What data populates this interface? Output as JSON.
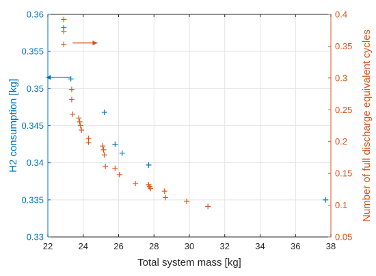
{
  "chart_data": {
    "type": "scatter",
    "title": "",
    "xlabel": "Total system mass [kg]",
    "ylabel_left": "H2 consumption [kg]",
    "ylabel_right": "Number of full discharge equivalent cycles",
    "xlim": [
      22,
      38
    ],
    "ylim_left": [
      0.33,
      0.36
    ],
    "ylim_right": [
      0.05,
      0.4
    ],
    "xticks": [
      "22",
      "24",
      "26",
      "28",
      "30",
      "32",
      "34",
      "36",
      "38"
    ],
    "yticks_left": [
      "0.33",
      "0.335",
      "0.34",
      "0.345",
      "0.35",
      "0.355",
      "0.36"
    ],
    "yticks_right": [
      "0.05",
      "0.1",
      "0.15",
      "0.2",
      "0.25",
      "0.3",
      "0.35",
      "0.4"
    ],
    "grid": true,
    "marker": "+",
    "colors": {
      "left": "#0072BD",
      "right": "#D95319",
      "grid": "#e3e3e3",
      "axis": "#262626"
    },
    "series": [
      {
        "axis": "left",
        "points": [
          {
            "x": 22.9,
            "y": 0.3582
          },
          {
            "x": 23.3,
            "y": 0.3513
          },
          {
            "x": 25.2,
            "y": 0.3468
          },
          {
            "x": 25.8,
            "y": 0.3425
          },
          {
            "x": 26.2,
            "y": 0.3413
          },
          {
            "x": 27.7,
            "y": 0.3397
          },
          {
            "x": 37.7,
            "y": 0.335
          }
        ]
      },
      {
        "axis": "right",
        "points": [
          {
            "x": 22.9,
            "y": 0.392
          },
          {
            "x": 22.9,
            "y": 0.373
          },
          {
            "x": 22.9,
            "y": 0.353
          },
          {
            "x": 23.35,
            "y": 0.282
          },
          {
            "x": 23.35,
            "y": 0.266
          },
          {
            "x": 23.4,
            "y": 0.243
          },
          {
            "x": 23.75,
            "y": 0.237
          },
          {
            "x": 23.8,
            "y": 0.231
          },
          {
            "x": 23.85,
            "y": 0.225
          },
          {
            "x": 23.9,
            "y": 0.218
          },
          {
            "x": 24.3,
            "y": 0.205
          },
          {
            "x": 24.3,
            "y": 0.199
          },
          {
            "x": 25.1,
            "y": 0.193
          },
          {
            "x": 25.15,
            "y": 0.187
          },
          {
            "x": 25.2,
            "y": 0.179
          },
          {
            "x": 25.25,
            "y": 0.161
          },
          {
            "x": 25.8,
            "y": 0.158
          },
          {
            "x": 26.05,
            "y": 0.148
          },
          {
            "x": 26.95,
            "y": 0.134
          },
          {
            "x": 27.7,
            "y": 0.132
          },
          {
            "x": 27.75,
            "y": 0.129
          },
          {
            "x": 27.8,
            "y": 0.126
          },
          {
            "x": 28.6,
            "y": 0.122
          },
          {
            "x": 28.65,
            "y": 0.112
          },
          {
            "x": 29.85,
            "y": 0.106
          },
          {
            "x": 31.05,
            "y": 0.098
          }
        ]
      }
    ],
    "annotations": [
      {
        "type": "arrow",
        "axis": "left",
        "direction": "left",
        "from": {
          "x": 23.3,
          "y": 0.3515
        },
        "to": {
          "x": 21.9,
          "y": 0.3515
        }
      },
      {
        "type": "arrow",
        "axis": "right",
        "direction": "right",
        "from": {
          "x": 23.4,
          "y": 0.355
        },
        "to": {
          "x": 24.8,
          "y": 0.355
        }
      }
    ]
  }
}
